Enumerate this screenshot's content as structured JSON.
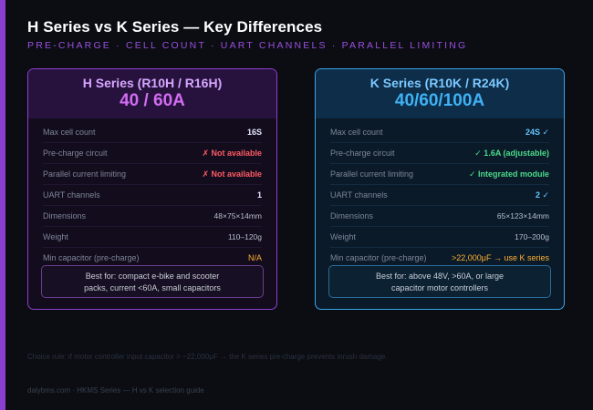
{
  "header": {
    "title": "H Series vs K Series — Key Differences",
    "subtitle": "PRE-CHARGE · CELL COUNT · UART CHANNELS · PARALLEL LIMITING"
  },
  "h_card": {
    "title": "H Series (R10H / R16H)",
    "rating": "40 / 60A",
    "rows": [
      {
        "label": "Max cell count",
        "value": "16S"
      },
      {
        "label": "Pre-charge circuit",
        "value": "✗ Not available"
      },
      {
        "label": "Parallel current limiting",
        "value": "✗ Not available"
      },
      {
        "label": "UART channels",
        "value": "1"
      },
      {
        "label": "Dimensions",
        "value": "48×75×14mm"
      },
      {
        "label": "Weight",
        "value": "110–120g"
      },
      {
        "label": "Min capacitor (pre-charge)",
        "value": "N/A"
      }
    ],
    "best_line1": "Best for: compact e-bike and scooter",
    "best_line2": "packs, current <60A, small capacitors"
  },
  "k_card": {
    "title": "K Series (R10K / R24K)",
    "rating": "40/60/100A",
    "rows": [
      {
        "label": "Max cell count",
        "value": "24S ✓"
      },
      {
        "label": "Pre-charge circuit",
        "value": "✓ 1.6A (adjustable)"
      },
      {
        "label": "Parallel current limiting",
        "value": "✓ Integrated module"
      },
      {
        "label": "UART channels",
        "value": "2 ✓"
      },
      {
        "label": "Dimensions",
        "value": "65×123×14mm"
      },
      {
        "label": "Weight",
        "value": "170–200g"
      },
      {
        "label": "Min capacitor (pre-charge)",
        "value": ">22,000μF → use K series"
      }
    ],
    "best_line1": "Best for: above 48V, >60A, or large",
    "best_line2": "capacitor motor controllers"
  },
  "rule": "Choice rule: if motor controller input capacitor > ~22,000μF → the K series pre-charge prevents inrush damage.",
  "footer": "dalybms.com · HKMS Series — H vs K selection guide",
  "colors": {
    "h_accent": "#8e3fd1",
    "k_accent": "#3aa4e8",
    "negative": "#ff5a64",
    "positive": "#4cd98a",
    "warning": "#ffb030"
  }
}
